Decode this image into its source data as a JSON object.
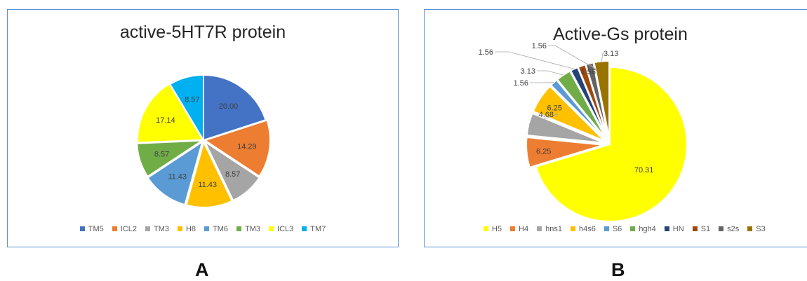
{
  "figure_labels": {
    "a": "A",
    "b": "B"
  },
  "chart_data": [
    {
      "type": "pie",
      "title": "active-5HT7R protein",
      "categories": [
        "TM5",
        "ICL2",
        "TM3",
        "H8",
        "TM6",
        "TM3",
        "ICL3",
        "TM7"
      ],
      "values": [
        20.0,
        14.29,
        8.57,
        11.43,
        11.43,
        8.57,
        17.14,
        8.57
      ],
      "data_labels": [
        "20.00",
        "14.29",
        "8.57",
        "11.43",
        "11.43",
        "8.57",
        "17.14",
        "8.57"
      ],
      "colors": [
        "#4472c4",
        "#ed7d31",
        "#a5a5a5",
        "#ffc000",
        "#5b9bd5",
        "#70ad47",
        "#ffff00",
        "#00b0f0"
      ],
      "legend_position": "bottom"
    },
    {
      "type": "pie",
      "title": "Active-Gs protein",
      "categories": [
        "H5",
        "H4",
        "hns1",
        "h4s6",
        "S6",
        "hgh4",
        "HN",
        "S1",
        "s2s",
        "S3"
      ],
      "values": [
        70.31,
        6.25,
        4.68,
        6.25,
        1.56,
        3.13,
        1.56,
        1.56,
        1.56,
        3.13
      ],
      "data_labels": [
        "70.31",
        "6.25",
        "4.68",
        "6.25",
        "1.56",
        "3.13",
        "1.56",
        "",
        "1.56",
        "3.13"
      ],
      "colors": [
        "#ffff00",
        "#ed7d31",
        "#a5a5a5",
        "#ffc000",
        "#5b9bd5",
        "#70ad47",
        "#264478",
        "#9e480e",
        "#636363",
        "#997300"
      ],
      "legend_position": "bottom"
    }
  ]
}
